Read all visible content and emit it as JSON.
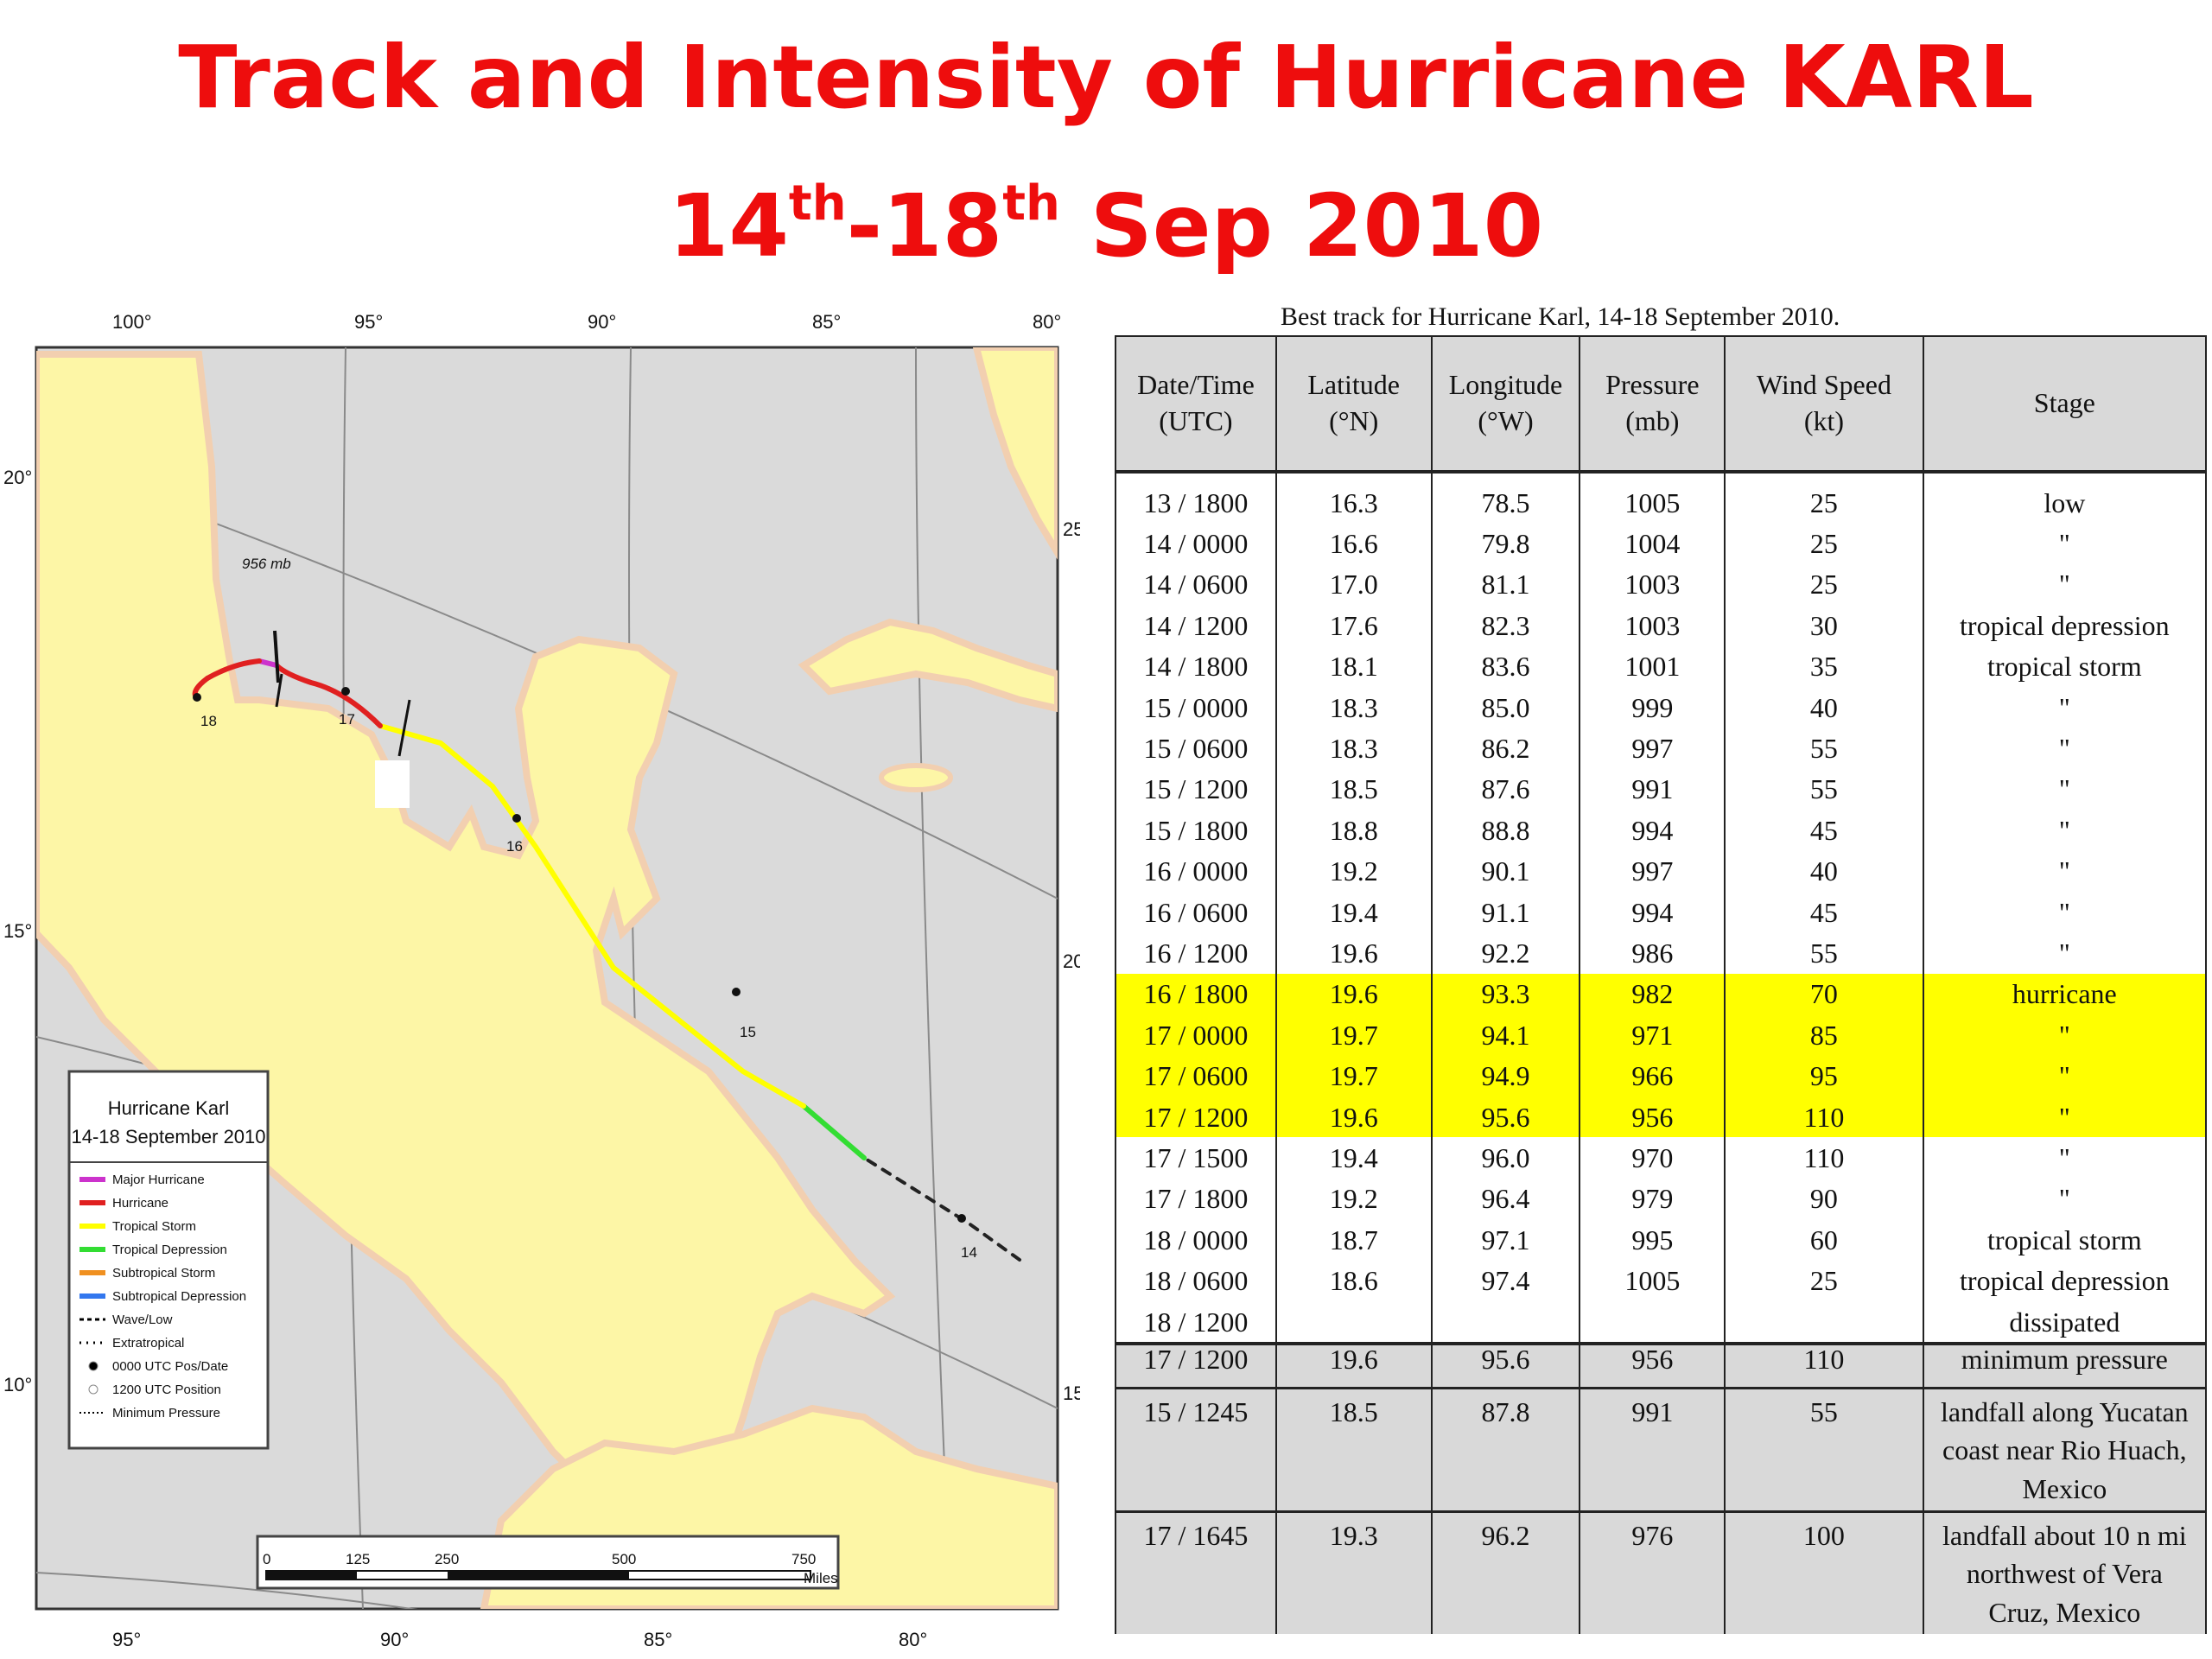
{
  "title": {
    "line1": "Track and Intensity of Hurricane KARL",
    "line2_day1": "14",
    "line2_sup1": "th",
    "line2_sep": "-18",
    "line2_sup2": "th",
    "line2_rest": " Sep 2010"
  },
  "map": {
    "top_lon_labels": [
      "100°",
      "95°",
      "90°",
      "85°",
      "80°"
    ],
    "bottom_lon_labels": [
      "95°",
      "90°",
      "85°",
      "80°"
    ],
    "left_lat_labels": [
      "20°",
      "15°",
      "10°"
    ],
    "right_lat_labels": [
      "25°",
      "20°",
      "15°"
    ],
    "min_pressure_label": "956 mb",
    "day_labels": [
      "18",
      "17",
      "16",
      "15",
      "14"
    ],
    "legend": {
      "title_line1": "Hurricane Karl",
      "title_line2": "14-18 September 2010",
      "items": [
        {
          "label": "Major Hurricane",
          "color": "#cc33cc"
        },
        {
          "label": "Hurricane",
          "color": "#e02020"
        },
        {
          "label": "Tropical Storm",
          "color": "#ffff00"
        },
        {
          "label": "Tropical Depression",
          "color": "#33dd33"
        },
        {
          "label": "Subtropical Storm",
          "color": "#f09020"
        },
        {
          "label": "Subtropical Depression",
          "color": "#3377ee"
        },
        {
          "label": "Wave/Low",
          "color": "#000000"
        },
        {
          "label": "Extratropical",
          "color": "#000000"
        },
        {
          "label": "0000 UTC Pos/Date",
          "color": "#000000"
        },
        {
          "label": "1200 UTC Position",
          "color": "#ffffff"
        },
        {
          "label": "Minimum Pressure",
          "color": "#000000"
        }
      ]
    },
    "scale": {
      "ticks": [
        "0",
        "125",
        "250",
        "500",
        "750"
      ],
      "unit": "Miles"
    },
    "colors": {
      "land": "#fdf6a6",
      "land_edge": "#f2cfb0",
      "sea": "#dadada"
    }
  },
  "table": {
    "caption": "Best track for Hurricane Karl, 14-18 September 2010.",
    "headers": [
      {
        "l1": "Date/Time",
        "l2": "(UTC)"
      },
      {
        "l1": "Latitude",
        "l2": "(°N)"
      },
      {
        "l1": "Longitude",
        "l2": "(°W)"
      },
      {
        "l1": "Pressure",
        "l2": "(mb)"
      },
      {
        "l1": "Wind Speed",
        "l2": "(kt)"
      },
      {
        "l1": "Stage",
        "l2": ""
      }
    ],
    "rows": [
      [
        "13 / 1800",
        "16.3",
        "78.5",
        "1005",
        "25",
        "low"
      ],
      [
        "14 / 0000",
        "16.6",
        "79.8",
        "1004",
        "25",
        "\""
      ],
      [
        "14 / 0600",
        "17.0",
        "81.1",
        "1003",
        "25",
        "\""
      ],
      [
        "14 / 1200",
        "17.6",
        "82.3",
        "1003",
        "30",
        "tropical depression"
      ],
      [
        "14 / 1800",
        "18.1",
        "83.6",
        "1001",
        "35",
        "tropical storm"
      ],
      [
        "15 / 0000",
        "18.3",
        "85.0",
        "999",
        "40",
        "\""
      ],
      [
        "15 / 0600",
        "18.3",
        "86.2",
        "997",
        "55",
        "\""
      ],
      [
        "15 / 1200",
        "18.5",
        "87.6",
        "991",
        "55",
        "\""
      ],
      [
        "15 / 1800",
        "18.8",
        "88.8",
        "994",
        "45",
        "\""
      ],
      [
        "16 / 0000",
        "19.2",
        "90.1",
        "997",
        "40",
        "\""
      ],
      [
        "16 / 0600",
        "19.4",
        "91.1",
        "994",
        "45",
        "\""
      ],
      [
        "16 / 1200",
        "19.6",
        "92.2",
        "986",
        "55",
        "\""
      ],
      [
        "16 / 1800",
        "19.6",
        "93.3",
        "982",
        "70",
        "hurricane"
      ],
      [
        "17 / 0000",
        "19.7",
        "94.1",
        "971",
        "85",
        "\""
      ],
      [
        "17 / 0600",
        "19.7",
        "94.9",
        "966",
        "95",
        "\""
      ],
      [
        "17 / 1200",
        "19.6",
        "95.6",
        "956",
        "110",
        "\""
      ],
      [
        "17 / 1500",
        "19.4",
        "96.0",
        "970",
        "110",
        "\""
      ],
      [
        "17 / 1800",
        "19.2",
        "96.4",
        "979",
        "90",
        "\""
      ],
      [
        "18 / 0000",
        "18.7",
        "97.1",
        "995",
        "60",
        "tropical storm"
      ],
      [
        "18 / 0600",
        "18.6",
        "97.4",
        "1005",
        "25",
        "tropical depression"
      ],
      [
        "18 / 1200",
        "",
        "",
        "",
        "",
        "dissipated"
      ]
    ],
    "highlight_rows": [
      12,
      13,
      14,
      15
    ],
    "summary": [
      {
        "cells": [
          "17 / 1200",
          "19.6",
          "95.6",
          "956",
          "110"
        ],
        "stage": [
          "minimum pressure"
        ]
      },
      {
        "cells": [
          "15 / 1245",
          "18.5",
          "87.8",
          "991",
          "55"
        ],
        "stage": [
          "landfall along Yucatan",
          "coast near Rio Huach,",
          "Mexico"
        ]
      },
      {
        "cells": [
          "17 / 1645",
          "19.3",
          "96.2",
          "976",
          "100"
        ],
        "stage": [
          "landfall about 10 n mi",
          "northwest of Vera",
          "Cruz, Mexico"
        ]
      }
    ],
    "highlight_color": "#ffff00"
  }
}
